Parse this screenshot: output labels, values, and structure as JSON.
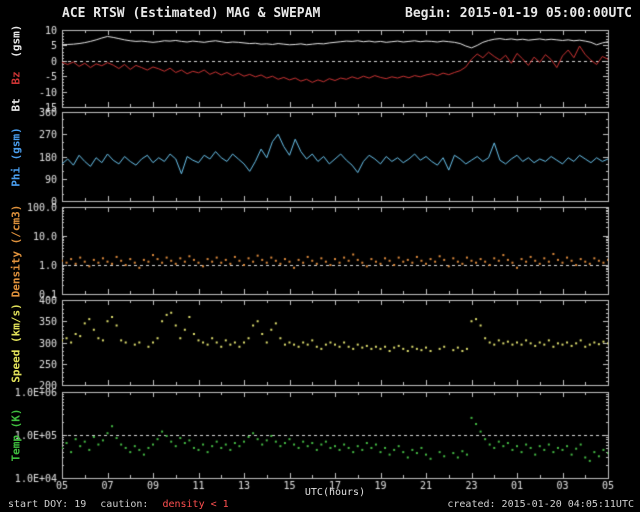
{
  "footer": {
    "start_doy": "start DOY: 19",
    "caution": "caution:",
    "caution_value": "density < 1",
    "created": "created: 2015-01-20 04:05:11UTC"
  },
  "colors": {
    "background": "#000000",
    "frame": "#c0c0c0",
    "text": "#e0e0e0",
    "ref_line": "#d8d8d8",
    "caution": "#ff5050"
  },
  "chart_data": {
    "type": "line",
    "title": "ACE RTSW (Estimated) MAG & SWEPAM",
    "begin_label": "Begin: 2015-01-19 05:00:00UTC",
    "xlabel": "UTC(hours)",
    "x_range": [
      5,
      29
    ],
    "x_tick_hours": [
      5,
      7,
      9,
      11,
      13,
      15,
      17,
      19,
      21,
      23,
      25,
      27,
      29
    ],
    "x_tick_labels": [
      "05",
      "07",
      "09",
      "11",
      "13",
      "15",
      "17",
      "19",
      "21",
      "23",
      "01",
      "03",
      "05"
    ],
    "panels": [
      {
        "name": "mag-field",
        "ylabel_parts": [
          {
            "text": "Bt",
            "color": "#e8e8e8"
          },
          {
            "text": "Bz",
            "color": "#cc3434"
          },
          {
            "text": "(gsm)",
            "color": "#e8e8e8"
          }
        ],
        "scale": "linear",
        "ylim": [
          -15,
          10
        ],
        "ytick_values": [
          10,
          5,
          0,
          -5,
          -10,
          -15
        ],
        "ytick_labels": [
          "10",
          "5",
          "0",
          "-5",
          "-10",
          "-15"
        ],
        "ref_value": 0,
        "series": [
          {
            "name": "Bt",
            "color": "#e8e8e8",
            "style": "line",
            "x_step": 0.25,
            "values": [
              5.2,
              5.3,
              5.4,
              5.6,
              5.9,
              6.3,
              6.8,
              7.4,
              7.9,
              7.6,
              7.2,
              6.8,
              6.5,
              6.3,
              6.4,
              6.2,
              6.0,
              6.2,
              6.5,
              6.4,
              6.6,
              6.3,
              6.1,
              6.4,
              6.2,
              6.0,
              6.3,
              6.5,
              6.2,
              5.9,
              6.1,
              6.0,
              5.8,
              5.6,
              5.7,
              5.4,
              5.5,
              5.3,
              5.6,
              5.4,
              5.2,
              5.3,
              5.5,
              5.2,
              5.4,
              5.6,
              5.5,
              5.8,
              6.0,
              6.2,
              6.4,
              6.3,
              6.5,
              6.2,
              6.4,
              6.1,
              6.3,
              6.0,
              6.2,
              6.4,
              6.1,
              6.3,
              6.5,
              6.2,
              6.4,
              6.3,
              6.1,
              6.4,
              6.2,
              6.0,
              5.6,
              4.8,
              4.2,
              5.0,
              6.0,
              6.6,
              7.0,
              7.2,
              6.9,
              7.1,
              6.8,
              7.0,
              6.7,
              6.9,
              7.1,
              6.8,
              7.0,
              6.8,
              6.6,
              6.8,
              6.5,
              6.7,
              6.4,
              6.0,
              5.2,
              5.8,
              6.2
            ]
          },
          {
            "name": "Bz",
            "color": "#cc3434",
            "style": "line",
            "x_step": 0.25,
            "values": [
              -0.5,
              -1.2,
              -0.4,
              -1.8,
              -0.8,
              -2.2,
              -1.0,
              -1.6,
              -0.6,
              -1.4,
              -2.5,
              -1.2,
              -2.8,
              -1.5,
              -2.2,
              -3.0,
              -2.0,
              -2.6,
              -3.4,
              -2.4,
              -3.8,
              -3.0,
              -4.2,
              -3.4,
              -3.9,
              -3.0,
              -4.4,
              -3.6,
              -4.6,
              -3.8,
              -4.8,
              -4.0,
              -5.0,
              -4.4,
              -5.2,
              -4.6,
              -5.6,
              -5.0,
              -6.0,
              -5.4,
              -6.2,
              -5.6,
              -6.6,
              -6.0,
              -7.0,
              -6.2,
              -6.8,
              -5.8,
              -6.4,
              -5.6,
              -6.0,
              -5.2,
              -5.8,
              -5.0,
              -5.6,
              -4.8,
              -5.4,
              -5.8,
              -5.2,
              -5.6,
              -5.0,
              -5.5,
              -4.8,
              -5.2,
              -4.6,
              -4.2,
              -4.8,
              -4.0,
              -4.5,
              -3.8,
              -3.2,
              -2.0,
              0.5,
              2.2,
              1.0,
              2.8,
              1.4,
              0.2,
              1.8,
              -0.8,
              2.4,
              0.6,
              -1.5,
              1.2,
              -0.5,
              2.0,
              0.4,
              -2.2,
              1.6,
              3.5,
              1.0,
              4.8,
              2.0,
              0.2,
              -1.2,
              1.4,
              0.5
            ]
          }
        ]
      },
      {
        "name": "phi",
        "ylabel": "Phi (gsm)",
        "ylabel_color": "#4a9ff0",
        "scale": "linear",
        "ylim": [
          0,
          360
        ],
        "ytick_values": [
          360,
          270,
          180,
          90,
          0
        ],
        "ytick_labels": [
          "360",
          "270",
          "180",
          "90",
          "0"
        ],
        "series": [
          {
            "name": "Phi",
            "color": "#6ac4ee",
            "style": "line",
            "x_step": 0.25,
            "values": [
              150,
              170,
              145,
              185,
              160,
              140,
              175,
              155,
              190,
              165,
              150,
              180,
              160,
              145,
              170,
              185,
              155,
              175,
              160,
              190,
              170,
              110,
              180,
              165,
              155,
              185,
              170,
              200,
              175,
              160,
              190,
              170,
              150,
              120,
              160,
              210,
              175,
              240,
              270,
              220,
              185,
              250,
              200,
              170,
              190,
              160,
              180,
              150,
              170,
              190,
              165,
              145,
              115,
              160,
              185,
              170,
              150,
              180,
              160,
              175,
              155,
              170,
              190,
              165,
              180,
              160,
              145,
              175,
              125,
              185,
              170,
              150,
              165,
              180,
              160,
              175,
              235,
              165,
              150,
              170,
              185,
              160,
              175,
              155,
              170,
              160,
              180,
              165,
              150,
              175,
              160,
              185,
              170,
              155,
              175,
              160,
              170
            ]
          }
        ]
      },
      {
        "name": "density",
        "ylabel": "Density (/cm3)",
        "ylabel_color": "#e0923c",
        "scale": "log",
        "ylim": [
          0.1,
          100
        ],
        "ytick_values": [
          100,
          10,
          1,
          0.1
        ],
        "ytick_labels": [
          "100.0",
          "10.0",
          "1.0",
          "0.1"
        ],
        "ref_value": 1,
        "series": [
          {
            "name": "Density",
            "color": "#dd8a3c",
            "style": "scatter",
            "x_step": 0.2,
            "values": [
              1.4,
              1.2,
              1.6,
              1.1,
              1.8,
              1.3,
              0.9,
              1.5,
              1.2,
              1.7,
              1.3,
              1.1,
              1.9,
              1.4,
              1.0,
              1.6,
              1.2,
              0.8,
              1.5,
              1.3,
              2.2,
              1.6,
              1.2,
              1.8,
              1.4,
              1.1,
              1.7,
              1.3,
              2.0,
              1.5,
              1.2,
              0.9,
              1.6,
              1.3,
              1.8,
              1.2,
              1.5,
              1.1,
              1.9,
              1.4,
              1.0,
              1.7,
              1.3,
              2.1,
              1.5,
              1.2,
              1.8,
              1.4,
              1.1,
              1.6,
              1.3,
              0.8,
              1.5,
              1.2,
              1.9,
              1.4,
              1.1,
              1.7,
              1.3,
              1.0,
              1.6,
              1.2,
              1.8,
              1.4,
              2.3,
              1.5,
              1.2,
              0.9,
              1.6,
              1.3,
              1.1,
              1.7,
              1.4,
              1.0,
              1.8,
              1.3,
              1.5,
              1.2,
              1.9,
              1.4,
              1.1,
              1.6,
              1.3,
              2.0,
              1.5,
              0.9,
              1.7,
              1.3,
              1.1,
              1.8,
              1.4,
              1.2,
              1.6,
              1.3,
              1.0,
              1.7,
              1.4,
              2.2,
              1.5,
              1.2,
              0.8,
              1.6,
              1.3,
              1.9,
              1.4,
              1.1,
              1.7,
              1.3,
              2.4,
              1.5,
              1.2,
              1.8,
              1.4,
              1.0,
              1.6,
              1.3,
              1.1,
              1.7,
              1.4,
              1.2,
              1.5
            ]
          }
        ]
      },
      {
        "name": "speed",
        "ylabel": "Speed (km/s)",
        "ylabel_color": "#e2e25a",
        "scale": "linear",
        "ylim": [
          200,
          400
        ],
        "ytick_values": [
          400,
          350,
          300,
          250,
          200
        ],
        "ytick_labels": [
          "400",
          "350",
          "300",
          "250",
          "200"
        ],
        "series": [
          {
            "name": "Speed",
            "color": "#dede6e",
            "style": "scatter",
            "x_step": 0.2,
            "values": [
              305,
              310,
              300,
              320,
              315,
              345,
              355,
              330,
              310,
              305,
              350,
              360,
              340,
              305,
              300,
              null,
              295,
              300,
              null,
              290,
              300,
              310,
              350,
              365,
              370,
              340,
              310,
              330,
              360,
              320,
              305,
              300,
              295,
              310,
              300,
              290,
              305,
              295,
              300,
              290,
              300,
              310,
              340,
              350,
              320,
              300,
              330,
              345,
              310,
              295,
              300,
              295,
              290,
              300,
              295,
              305,
              290,
              285,
              295,
              300,
              295,
              290,
              300,
              290,
              285,
              295,
              288,
              292,
              285,
              290,
              285,
              290,
              280,
              288,
              292,
              285,
              280,
              290,
              285,
              282,
              288,
              280,
              null,
              285,
              290,
              null,
              282,
              288,
              280,
              285,
              350,
              355,
              340,
              310,
              300,
              295,
              305,
              298,
              302,
              295,
              300,
              295,
              305,
              298,
              292,
              300,
              295,
              305,
              290,
              298,
              295,
              300,
              292,
              298,
              305,
              290,
              295,
              300,
              296,
              302,
              298
            ]
          }
        ]
      },
      {
        "name": "temp",
        "ylabel": "Temp (K)",
        "ylabel_color": "#3fbf3f",
        "scale": "log",
        "ylim": [
          10000,
          1000000
        ],
        "ytick_values": [
          1000000,
          100000,
          10000
        ],
        "ytick_labels": [
          "1.0E+06",
          "1.0E+05",
          "1.0E+04"
        ],
        "ref_value": 100000,
        "series": [
          {
            "name": "Temp",
            "color": "#44bb44",
            "style": "scatter",
            "x_step": 0.2,
            "values": [
              50000,
              65000,
              40000,
              80000,
              55000,
              70000,
              45000,
              90000,
              60000,
              75000,
              110000,
              160000,
              85000,
              60000,
              50000,
              40000,
              55000,
              45000,
              35000,
              50000,
              60000,
              80000,
              120000,
              95000,
              70000,
              55000,
              85000,
              65000,
              75000,
              50000,
              45000,
              60000,
              40000,
              55000,
              70000,
              50000,
              60000,
              45000,
              65000,
              55000,
              70000,
              90000,
              110000,
              80000,
              60000,
              75000,
              95000,
              70000,
              55000,
              65000,
              80000,
              60000,
              50000,
              70000,
              55000,
              65000,
              45000,
              60000,
              70000,
              50000,
              55000,
              45000,
              60000,
              50000,
              40000,
              55000,
              45000,
              65000,
              50000,
              60000,
              40000,
              50000,
              35000,
              45000,
              55000,
              40000,
              30000,
              45000,
              38000,
              50000,
              35000,
              28000,
              null,
              40000,
              32000,
              null,
              38000,
              30000,
              42000,
              35000,
              250000,
              180000,
              120000,
              80000,
              60000,
              50000,
              70000,
              55000,
              65000,
              45000,
              55000,
              40000,
              60000,
              50000,
              35000,
              55000,
              45000,
              60000,
              40000,
              50000,
              45000,
              55000,
              35000,
              48000,
              60000,
              30000,
              25000,
              40000,
              32000,
              45000,
              38000
            ]
          }
        ]
      }
    ]
  }
}
